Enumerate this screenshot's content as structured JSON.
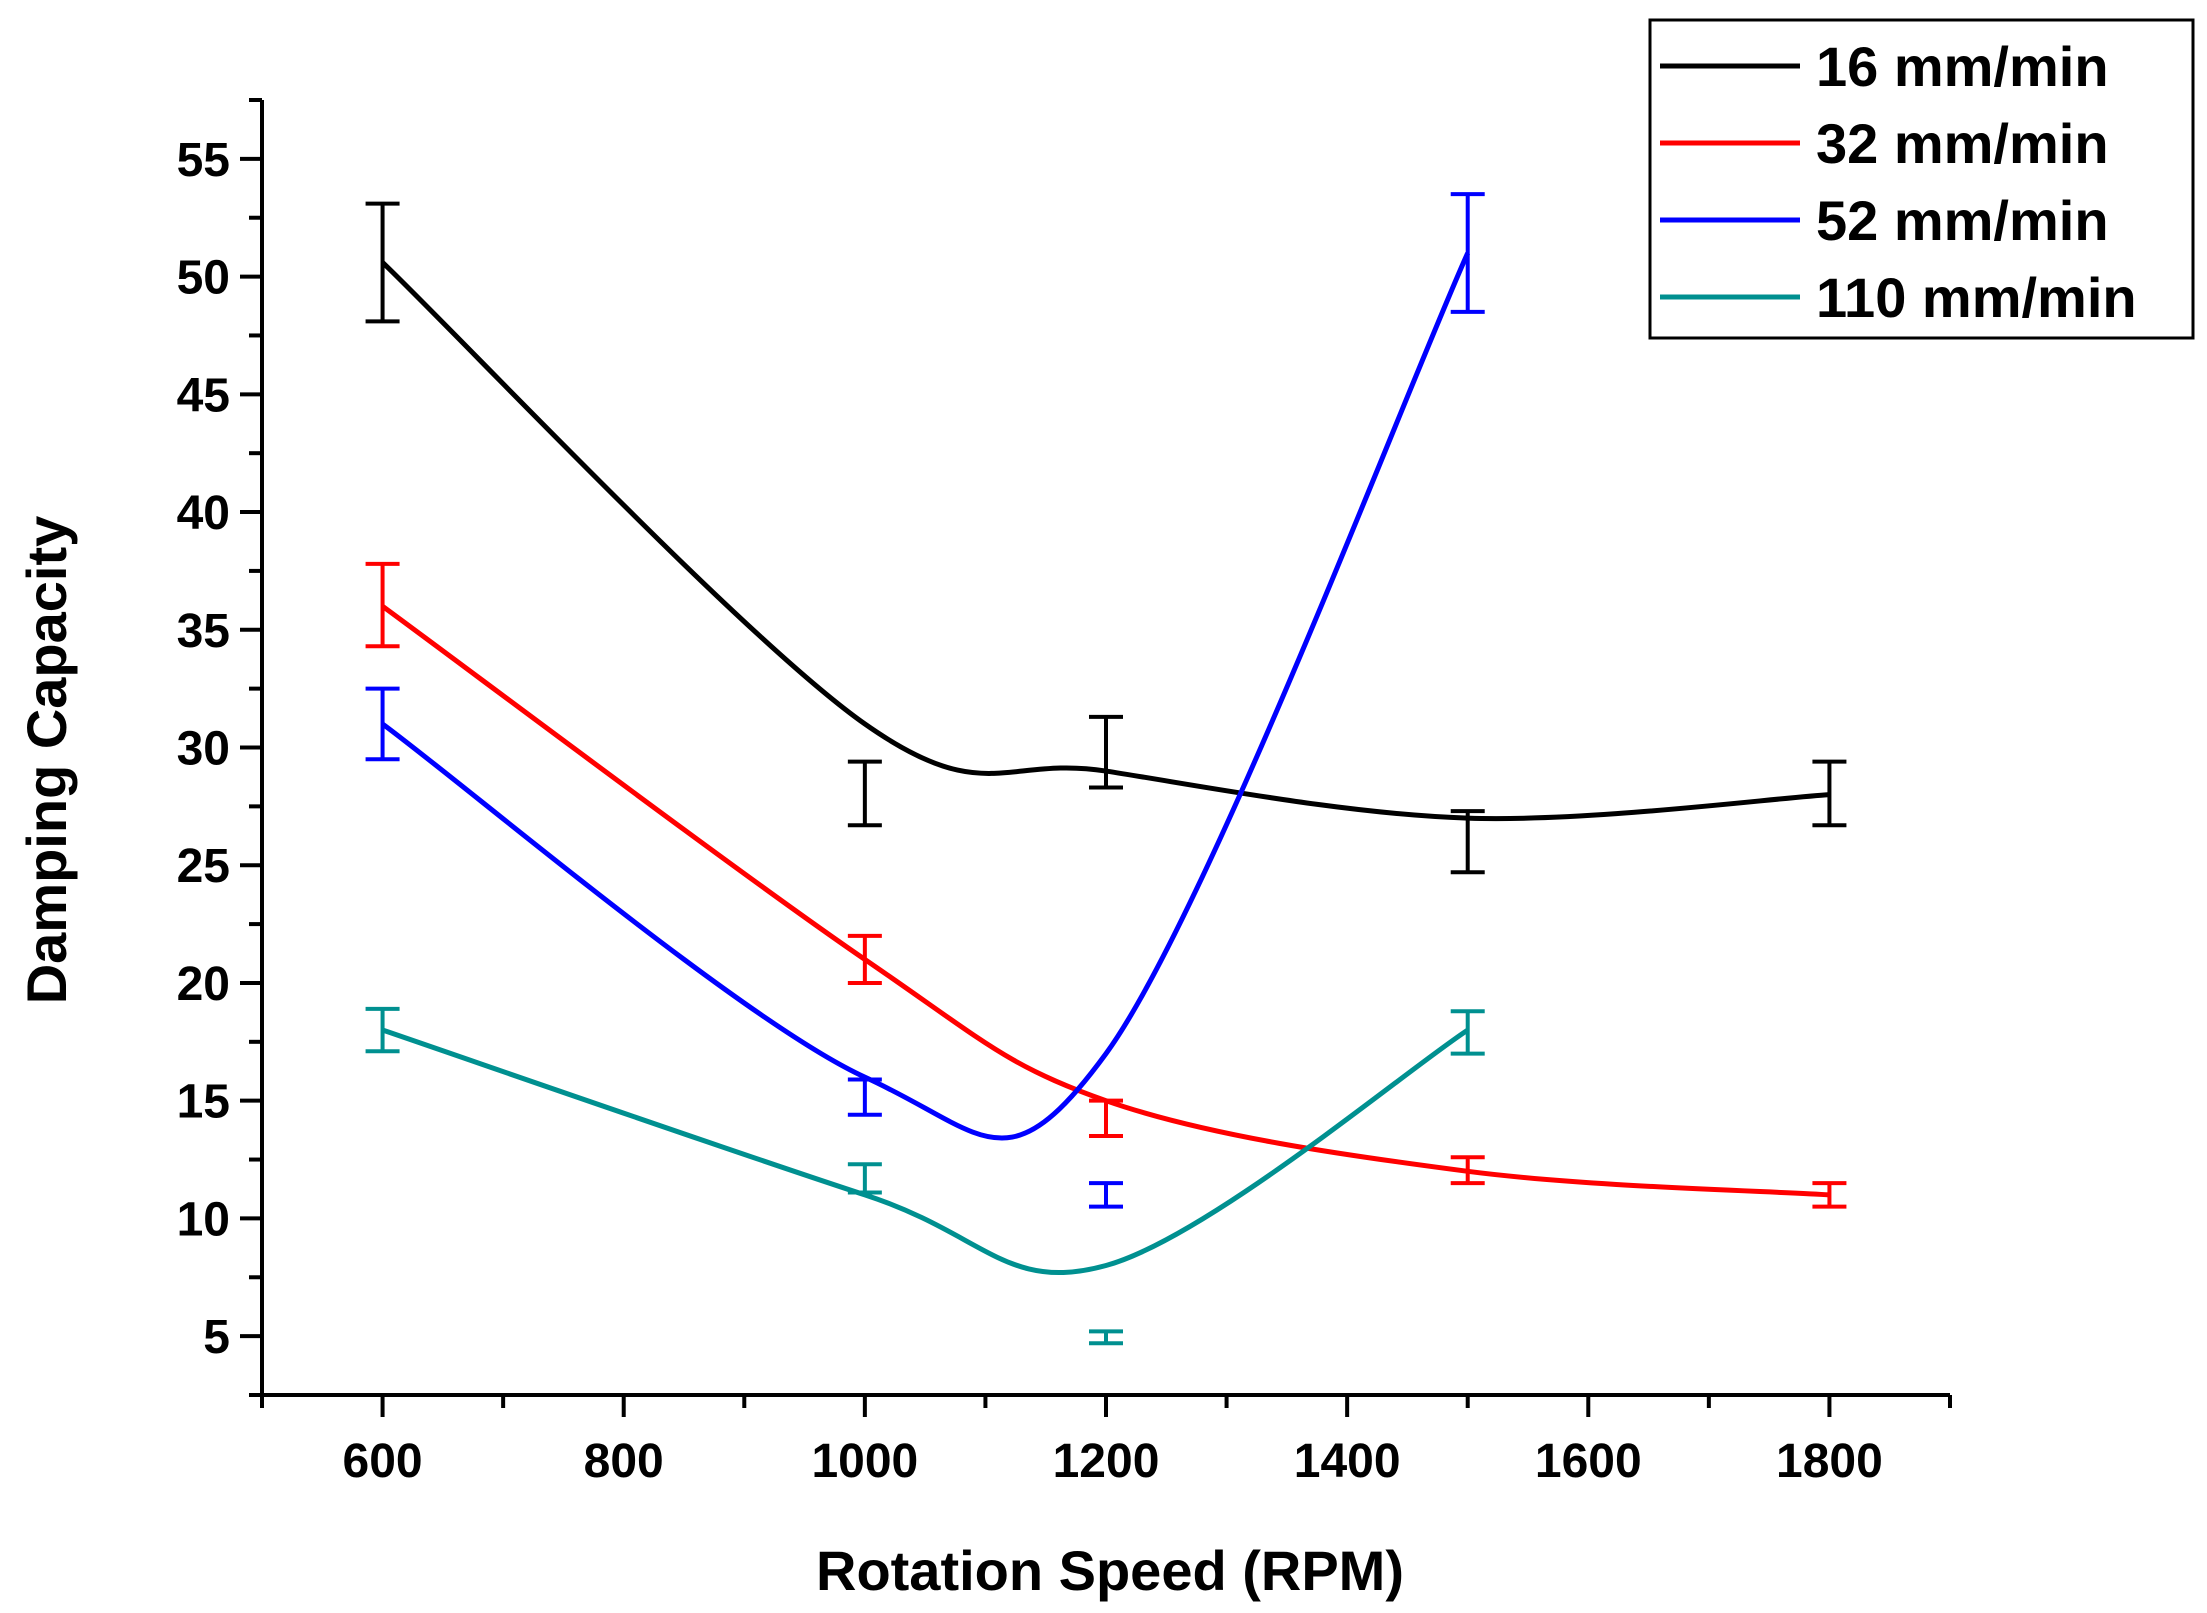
{
  "chart_data": {
    "type": "line",
    "title": "",
    "xlabel": "Rotation Speed (RPM)",
    "ylabel": "Damping Capacity",
    "xlim": [
      500,
      1900
    ],
    "ylim": [
      2.5,
      57.5
    ],
    "xticks": [
      600,
      800,
      1000,
      1200,
      1400,
      1600,
      1800
    ],
    "yticks": [
      5,
      10,
      15,
      20,
      25,
      30,
      35,
      40,
      45,
      50,
      55
    ],
    "xtick_labels": [
      "600",
      "800",
      "1000",
      "1200",
      "1400",
      "1600",
      "1800"
    ],
    "ytick_labels": [
      "5",
      "10",
      "15",
      "20",
      "25",
      "30",
      "35",
      "40",
      "45",
      "50",
      "55"
    ],
    "grid": false,
    "legend_position": "top-right",
    "series": [
      {
        "name": "16 mm/min",
        "color": "#000000",
        "points": [
          {
            "x": 600,
            "y": 50.6,
            "lo": 48.1,
            "hi": 53.1
          },
          {
            "x": 1000,
            "y": 28.0,
            "lo": 26.7,
            "hi": 29.4
          },
          {
            "x": 1200,
            "y": 29.8,
            "lo": 28.3,
            "hi": 31.3
          },
          {
            "x": 1500,
            "y": 26.0,
            "lo": 24.7,
            "hi": 27.3
          },
          {
            "x": 1800,
            "y": 28.0,
            "lo": 26.7,
            "hi": 29.4
          }
        ],
        "curve": [
          [
            600,
            50.6
          ],
          [
            1000,
            31.0
          ],
          [
            1200,
            29.0
          ],
          [
            1500,
            27.0
          ],
          [
            1800,
            28.0
          ]
        ]
      },
      {
        "name": "32 mm/min",
        "color": "#ff0000",
        "points": [
          {
            "x": 600,
            "y": 36.0,
            "lo": 34.3,
            "hi": 37.8
          },
          {
            "x": 1000,
            "y": 21.0,
            "lo": 20.0,
            "hi": 22.0
          },
          {
            "x": 1200,
            "y": 14.2,
            "lo": 13.5,
            "hi": 15.0
          },
          {
            "x": 1500,
            "y": 12.0,
            "lo": 11.5,
            "hi": 12.6
          },
          {
            "x": 1800,
            "y": 11.0,
            "lo": 10.5,
            "hi": 11.5
          }
        ],
        "curve": [
          [
            600,
            36.0
          ],
          [
            1000,
            21.0
          ],
          [
            1200,
            15.0
          ],
          [
            1500,
            12.0
          ],
          [
            1800,
            11.0
          ]
        ]
      },
      {
        "name": "52 mm/min",
        "color": "#0000ff",
        "points": [
          {
            "x": 600,
            "y": 31.0,
            "lo": 29.5,
            "hi": 32.5
          },
          {
            "x": 1000,
            "y": 15.1,
            "lo": 14.4,
            "hi": 15.9
          },
          {
            "x": 1200,
            "y": 11.0,
            "lo": 10.5,
            "hi": 11.5
          },
          {
            "x": 1500,
            "y": 51.0,
            "lo": 48.5,
            "hi": 53.5
          }
        ],
        "curve": [
          [
            600,
            31.0
          ],
          [
            1000,
            16.0
          ],
          [
            1200,
            17.0
          ],
          [
            1500,
            51.0
          ]
        ]
      },
      {
        "name": "110 mm/min",
        "color": "#009090",
        "points": [
          {
            "x": 600,
            "y": 18.0,
            "lo": 17.1,
            "hi": 18.9
          },
          {
            "x": 1000,
            "y": 11.7,
            "lo": 11.1,
            "hi": 12.3
          },
          {
            "x": 1200,
            "y": 4.9,
            "lo": 4.7,
            "hi": 5.2
          },
          {
            "x": 1500,
            "y": 17.9,
            "lo": 17.0,
            "hi": 18.8
          }
        ],
        "curve": [
          [
            600,
            18.0
          ],
          [
            1000,
            11.0
          ],
          [
            1200,
            8.0
          ],
          [
            1500,
            18.0
          ]
        ]
      }
    ]
  }
}
